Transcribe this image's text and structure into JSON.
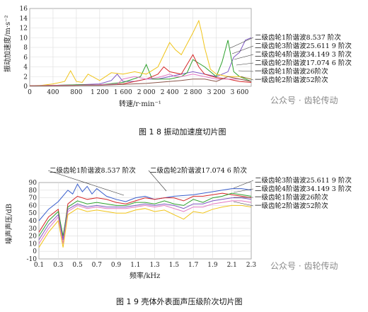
{
  "watermark": "公众号 · 齿轮传动",
  "figures": {
    "fig18": {
      "caption": "图 1 8  振动加速度切片图"
    },
    "fig19": {
      "caption": "图 1 9  壳体外表面声压级阶次切片图"
    }
  },
  "colors": {
    "blue": "#3a5fcd",
    "red": "#d62728",
    "purple": "#7e57c2",
    "green": "#2ca02c",
    "gold": "#f0c419",
    "pink": "#e377c2",
    "brown": "#8c564b"
  },
  "chart_data": [
    {
      "type": "line",
      "title": "",
      "xlabel": "转速/r·min⁻¹",
      "ylabel": "振动加速度/m·s⁻²",
      "xlim": [
        0,
        3800
      ],
      "ylim": [
        0,
        16
      ],
      "xticks": [
        0,
        400,
        800,
        1200,
        1600,
        2000,
        2400,
        2800,
        3200,
        3600
      ],
      "xtick_labels": [
        "0",
        "400",
        "800",
        "1 200",
        "1 600",
        "2 000",
        "2 400",
        "2 800",
        "3 200",
        "3 600"
      ],
      "yticks": [
        0,
        2,
        4,
        6,
        8,
        10,
        12,
        14,
        16
      ],
      "grid": true,
      "legend_position": "right",
      "series": [
        {
          "name": "二级齿轮1阶谐波8.537 阶次",
          "color": "purple",
          "x": [
            0,
            400,
            800,
            1200,
            1400,
            1500,
            1600,
            1800,
            2000,
            2200,
            2400,
            2600,
            2800,
            3000,
            3200,
            3400,
            3500,
            3600,
            3700,
            3800
          ],
          "y": [
            0.1,
            0.2,
            0.3,
            0.5,
            1.2,
            2.5,
            1.0,
            1.0,
            1.5,
            1.5,
            2.0,
            2.5,
            3.0,
            2.5,
            2.0,
            3.0,
            6.0,
            7.0,
            9.5,
            10.0
          ]
        },
        {
          "name": "二级齿轮3阶谐波25.611 9 阶次",
          "color": "green",
          "x": [
            0,
            400,
            800,
            1200,
            1600,
            1900,
            2000,
            2100,
            2200,
            2400,
            2600,
            2700,
            2800,
            3000,
            3200,
            3300,
            3400,
            3500,
            3600,
            3700,
            3800
          ],
          "y": [
            0.1,
            0.2,
            0.3,
            0.3,
            0.8,
            2.0,
            4.5,
            1.5,
            1.5,
            1.5,
            2.0,
            2.8,
            5.5,
            4.0,
            2.0,
            5.0,
            9.5,
            3.0,
            2.0,
            1.5,
            1.0
          ]
        },
        {
          "name": "二级齿轮4阶谐波34.149 3 阶次",
          "color": "red",
          "x": [
            0,
            400,
            800,
            1200,
            1600,
            2000,
            2200,
            2300,
            2400,
            2600,
            2800,
            2900,
            3000,
            3200,
            3400,
            3600,
            3800
          ],
          "y": [
            0.1,
            0.2,
            0.2,
            0.3,
            0.5,
            1.5,
            2.5,
            4.0,
            3.0,
            2.5,
            6.5,
            4.0,
            2.5,
            1.8,
            1.5,
            1.0,
            0.8
          ]
        },
        {
          "name": "二级齿轮2阶谐波17.074 6 阶次",
          "color": "gold",
          "x": [
            0,
            200,
            400,
            600,
            700,
            800,
            900,
            1000,
            1200,
            1400,
            1600,
            1800,
            2000,
            2200,
            2400,
            2500,
            2600,
            2800,
            2900,
            2950,
            3000,
            3100,
            3200,
            3400,
            3600,
            3800
          ],
          "y": [
            0.1,
            0.2,
            0.5,
            1.0,
            3.2,
            1.0,
            0.8,
            2.5,
            1.2,
            2.8,
            2.5,
            3.0,
            2.5,
            4.0,
            9.0,
            7.5,
            6.5,
            11.0,
            13.5,
            11.0,
            8.0,
            3.5,
            2.5,
            2.0,
            2.0,
            1.5
          ]
        },
        {
          "name": "一级齿轮1阶谐波26阶次",
          "color": "pink",
          "x": [
            0,
            400,
            800,
            1200,
            1500,
            1600,
            1800,
            2000,
            2200,
            2400,
            2500,
            2600,
            2800,
            3000,
            3200,
            3400,
            3600,
            3800
          ],
          "y": [
            0.1,
            0.2,
            0.2,
            0.3,
            0.5,
            1.5,
            2.0,
            1.5,
            1.8,
            2.5,
            2.0,
            2.0,
            2.5,
            2.0,
            1.5,
            1.5,
            1.5,
            1.0
          ]
        },
        {
          "name": "一级齿轮2阶谐波52阶次",
          "color": "brown",
          "x": [
            0,
            400,
            800,
            1200,
            1600,
            2000,
            2400,
            2600,
            2800,
            3000,
            3200,
            3400,
            3600,
            3800
          ],
          "y": [
            0.1,
            0.1,
            0.2,
            0.2,
            0.4,
            0.6,
            1.0,
            1.2,
            1.5,
            1.5,
            1.0,
            2.0,
            1.5,
            1.0
          ]
        }
      ]
    },
    {
      "type": "line",
      "title": "",
      "xlabel": "频率/kHz",
      "ylabel": "噪声声压/dB",
      "xlim": [
        0.1,
        2.3
      ],
      "ylim": [
        -10,
        90
      ],
      "xticks": [
        0.1,
        0.3,
        0.5,
        0.7,
        0.9,
        1.1,
        1.3,
        1.5,
        1.7,
        1.9,
        2.1,
        2.3
      ],
      "xtick_labels": [
        "0.1",
        "0.3",
        "0.5",
        "0.7",
        "0.9",
        "1.1",
        "1.3",
        "1.5",
        "1.7",
        "1.9",
        "2.1",
        "2.3"
      ],
      "yticks": [
        -10,
        0,
        10,
        20,
        30,
        40,
        50,
        60,
        70,
        80,
        90
      ],
      "grid": true,
      "legend_position": "right",
      "series": [
        {
          "name": "二级齿轮1阶谐波8.537 阶次",
          "color": "blue",
          "x": [
            0.1,
            0.2,
            0.3,
            0.4,
            0.45,
            0.5,
            0.55,
            0.6,
            0.65,
            0.7,
            0.8,
            0.9,
            1.0,
            1.1,
            1.2,
            1.3,
            1.4,
            1.5,
            1.6,
            1.7,
            1.8,
            1.9,
            2.0,
            2.1,
            2.2,
            2.3
          ],
          "y": [
            40,
            55,
            65,
            80,
            75,
            88,
            78,
            85,
            75,
            82,
            72,
            68,
            65,
            70,
            72,
            68,
            70,
            72,
            73,
            74,
            76,
            78,
            80,
            82,
            82,
            80
          ]
        },
        {
          "name": "二级齿轮2阶谐波17.074 6 阶次",
          "color": "red",
          "x": [
            0.1,
            0.2,
            0.3,
            0.35,
            0.4,
            0.5,
            0.6,
            0.7,
            0.8,
            0.9,
            1.0,
            1.1,
            1.2,
            1.3,
            1.4,
            1.5,
            1.6,
            1.7,
            1.8,
            1.9,
            2.0,
            2.1,
            2.2,
            2.3
          ],
          "y": [
            25,
            45,
            55,
            15,
            62,
            72,
            68,
            70,
            68,
            64,
            62,
            66,
            70,
            68,
            70,
            70,
            66,
            72,
            72,
            74,
            76,
            74,
            72,
            70
          ]
        },
        {
          "name": "二级齿轮3阶谐波25.611 9 阶次",
          "color": "green",
          "x": [
            0.1,
            0.2,
            0.3,
            0.35,
            0.4,
            0.5,
            0.6,
            0.7,
            0.8,
            0.9,
            1.0,
            1.1,
            1.2,
            1.3,
            1.4,
            1.5,
            1.6,
            1.7,
            1.8,
            1.9,
            2.0,
            2.1,
            2.2,
            2.3
          ],
          "y": [
            20,
            40,
            52,
            20,
            58,
            66,
            62,
            64,
            62,
            60,
            60,
            64,
            64,
            62,
            66,
            62,
            60,
            68,
            64,
            70,
            72,
            76,
            74,
            72
          ]
        },
        {
          "name": "二级齿轮4阶谐波34.149 3 阶次",
          "color": "purple",
          "x": [
            0.1,
            0.2,
            0.3,
            0.35,
            0.4,
            0.5,
            0.6,
            0.7,
            0.8,
            0.9,
            1.0,
            1.1,
            1.2,
            1.3,
            1.4,
            1.5,
            1.6,
            1.7,
            1.8,
            1.9,
            2.0,
            2.1,
            2.2,
            2.3
          ],
          "y": [
            15,
            35,
            48,
            15,
            55,
            62,
            58,
            60,
            58,
            58,
            58,
            60,
            62,
            60,
            62,
            60,
            56,
            62,
            62,
            66,
            68,
            70,
            70,
            68
          ]
        },
        {
          "name": "一级齿轮1阶谐波26阶次",
          "color": "pink",
          "x": [
            0.1,
            0.2,
            0.3,
            0.35,
            0.4,
            0.5,
            0.6,
            0.7,
            0.8,
            0.9,
            1.0,
            1.1,
            1.2,
            1.3,
            1.4,
            1.5,
            1.6,
            1.7,
            1.8,
            1.9,
            2.0,
            2.1,
            2.2,
            2.3
          ],
          "y": [
            10,
            30,
            45,
            10,
            52,
            60,
            56,
            58,
            56,
            56,
            56,
            58,
            60,
            58,
            60,
            56,
            52,
            58,
            58,
            62,
            64,
            66,
            66,
            64
          ]
        },
        {
          "name": "一级齿轮2阶谐波52阶次",
          "color": "gold",
          "x": [
            0.1,
            0.2,
            0.3,
            0.35,
            0.4,
            0.5,
            0.6,
            0.7,
            0.8,
            0.9,
            1.0,
            1.1,
            1.2,
            1.3,
            1.4,
            1.5,
            1.6,
            1.7,
            1.8,
            1.9,
            2.0,
            2.1,
            2.2,
            2.3
          ],
          "y": [
            5,
            25,
            40,
            5,
            48,
            56,
            52,
            54,
            52,
            50,
            50,
            54,
            56,
            52,
            54,
            48,
            42,
            52,
            50,
            55,
            58,
            60,
            60,
            58
          ]
        }
      ],
      "annotations_top": [
        "二级齿轮1阶谐波8.537 阶次",
        "二级齿轮2阶谐波17.074 6 阶次"
      ],
      "annotations_right": [
        "二级齿轮3阶谐波25.611 9 阶次",
        "二级齿轮4阶谐波34.149 3 阶次",
        "一级齿轮1阶谐波26阶次",
        "一级齿轮2阶谐波52阶次"
      ]
    }
  ]
}
